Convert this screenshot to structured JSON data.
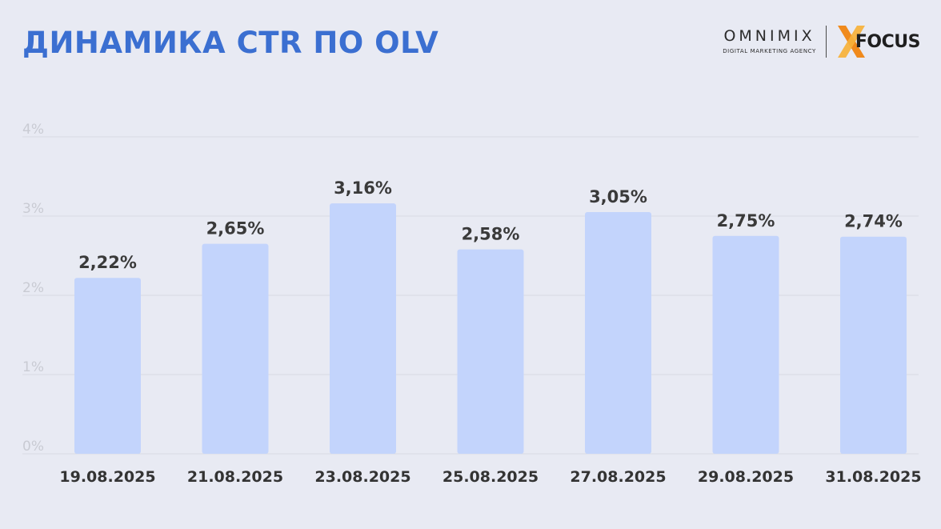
{
  "header": {
    "title": "ДИНАМИКА CTR ПО OLV"
  },
  "logos": {
    "omnimix_name": "OMNIMIX",
    "omnimix_tagline": "DIGITAL MARKETING AGENCY",
    "focus_word": "FOCUS",
    "focus_x_icon": "x-mark-icon"
  },
  "colors": {
    "background": "#e8eaf3",
    "title": "#3b6fd1",
    "bar": "#c3d4fc",
    "gridline": "#d8dae3",
    "focus_x_primary": "#f08a1c",
    "focus_x_secondary": "#f6b13a"
  },
  "chart_data": {
    "type": "bar",
    "title": "ДИНАМИКА CTR ПО OLV",
    "xlabel": "",
    "ylabel": "",
    "categories": [
      "19.08.2025",
      "21.08.2025",
      "23.08.2025",
      "25.08.2025",
      "27.08.2025",
      "29.08.2025",
      "31.08.2025"
    ],
    "values": [
      2.22,
      2.65,
      3.16,
      2.58,
      3.05,
      2.75,
      2.74
    ],
    "value_labels": [
      "2,22%",
      "2,65%",
      "3,16%",
      "2,58%",
      "3,05%",
      "2,75%",
      "2,74%"
    ],
    "ylim": [
      0,
      4
    ],
    "y_ticks": [
      0,
      1,
      2,
      3,
      4
    ],
    "y_tick_labels": [
      "0%",
      "1%",
      "2%",
      "3%",
      "4%"
    ],
    "grid": true,
    "legend": "none"
  }
}
